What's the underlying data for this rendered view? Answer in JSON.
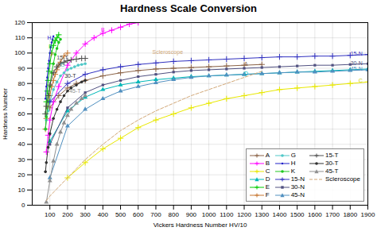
{
  "chart_data": {
    "type": "line",
    "title": "Hardness Scale Conversion",
    "x_label": "Vickers Hardness Number HV/10",
    "y_label": "Hardness Number",
    "xlim": [
      0,
      1900
    ],
    "ylim": [
      0,
      120
    ],
    "xticks": [
      100,
      200,
      300,
      400,
      500,
      600,
      700,
      800,
      900,
      1000,
      1100,
      1200,
      1300,
      1400,
      1500,
      1600,
      1700,
      1800,
      1900
    ],
    "yticks": [
      0,
      10,
      20,
      30,
      40,
      50,
      60,
      70,
      80,
      90,
      100,
      110,
      120
    ],
    "grid": true,
    "legend": "lower right",
    "series": [
      {
        "name": "A",
        "color": "#8B6347",
        "marker": "plus",
        "line_style": "solid",
        "x": [
          100,
          150,
          200,
          250,
          300,
          400,
          500,
          600,
          700,
          800,
          900,
          1000,
          1100,
          1200,
          1300
        ],
        "values": [
          64,
          72,
          77,
          80,
          82,
          85,
          87,
          88.5,
          89.5,
          90,
          90.5,
          91,
          91.5,
          92,
          92.5
        ]
      },
      {
        "name": "B",
        "color": "#ff00ff",
        "marker": "plus",
        "line_style": "solid",
        "x": [
          80,
          90,
          100,
          120,
          150,
          200,
          250,
          300,
          350,
          400,
          450,
          500,
          550,
          600
        ],
        "values": [
          35,
          46,
          56,
          68,
          78,
          92,
          100,
          106,
          110,
          113,
          115,
          117,
          119,
          120
        ]
      },
      {
        "name": "C",
        "color": "#e8e800",
        "marker": "plus",
        "line_style": "solid",
        "x": [
          200,
          300,
          400,
          500,
          600,
          700,
          800,
          900,
          1000,
          1100,
          1200,
          1300,
          1400,
          1500,
          1600,
          1700,
          1800,
          1900
        ],
        "values": [
          18,
          28,
          37,
          44,
          51,
          56,
          60,
          64,
          67,
          70,
          72,
          74,
          76,
          77,
          78,
          79,
          80,
          81
        ]
      },
      {
        "name": "D",
        "color": "#00b8b8",
        "marker": "triangle",
        "line_style": "solid",
        "x": [
          100,
          200,
          300,
          400,
          500,
          600,
          700,
          800,
          900,
          1000,
          1100,
          1200,
          1300,
          1400,
          1500,
          1600,
          1700,
          1800,
          1900
        ],
        "values": [
          42,
          62,
          71,
          76,
          79,
          81,
          82.5,
          83.5,
          84.5,
          85,
          85.5,
          86,
          86.5,
          87,
          87.5,
          88,
          88.5,
          89,
          89.5
        ]
      },
      {
        "name": "E",
        "color": "#00cc00",
        "marker": "plus",
        "line_style": "solid",
        "x": [
          75,
          80,
          85,
          90,
          95,
          100,
          110,
          120,
          130,
          140,
          150
        ],
        "values": [
          60,
          68,
          75,
          82,
          88,
          93,
          100,
          105,
          108,
          110,
          112
        ]
      },
      {
        "name": "F",
        "color": "#c87832",
        "marker": "plus",
        "line_style": "solid",
        "x": [
          75,
          80,
          90,
          100,
          110,
          120,
          130,
          140,
          150,
          160,
          180,
          200
        ],
        "values": [
          50,
          57,
          65,
          72,
          78,
          82,
          86,
          89,
          92,
          94,
          98,
          100
        ]
      },
      {
        "name": "G",
        "color": "#50c8c8",
        "marker": "circle",
        "line_style": "solid",
        "x": [
          75,
          80,
          90,
          100,
          120,
          140,
          160,
          180,
          200,
          220,
          240,
          260,
          280,
          300
        ],
        "values": [
          50,
          56,
          62,
          68,
          76,
          81,
          85,
          87,
          89,
          90,
          91,
          92,
          92.5,
          93
        ]
      },
      {
        "name": "H",
        "color": "#2020c8",
        "marker": "point",
        "line_style": "solid",
        "x": [
          75,
          80,
          85,
          90,
          95,
          100,
          105,
          110,
          115,
          120
        ],
        "values": [
          70,
          78,
          84,
          90,
          95,
          100,
          104,
          107,
          109,
          111
        ]
      },
      {
        "name": "K",
        "color": "#20c820",
        "marker": "circle",
        "line_style": "solid",
        "x": [
          75,
          80,
          90,
          100,
          110,
          120,
          130,
          140,
          150,
          160
        ],
        "values": [
          50,
          58,
          68,
          78,
          87,
          93,
          99,
          103,
          107,
          109
        ]
      },
      {
        "name": "15-N",
        "color": "#3030c0",
        "marker": "plus",
        "line_style": "solid",
        "x": [
          100,
          200,
          300,
          400,
          500,
          600,
          700,
          800,
          900,
          1000,
          1100,
          1200,
          1300,
          1400,
          1500,
          1600,
          1700,
          1800,
          1900
        ],
        "values": [
          68,
          80,
          86,
          89,
          91,
          92.5,
          93.5,
          94.5,
          95,
          95.5,
          96,
          96.5,
          97,
          97.5,
          97.5,
          98,
          98,
          98.5,
          99
        ]
      },
      {
        "name": "30-N",
        "color": "#505080",
        "marker": "square",
        "line_style": "solid",
        "x": [
          100,
          200,
          300,
          400,
          500,
          600,
          700,
          800,
          900,
          1000,
          1100,
          1200,
          1300,
          1400,
          1500,
          1600,
          1700,
          1800,
          1900
        ],
        "values": [
          40,
          64,
          74,
          79,
          82,
          84.5,
          86,
          87.5,
          88.5,
          89,
          89.5,
          90,
          90.5,
          91,
          91.5,
          92,
          92,
          92.5,
          93
        ]
      },
      {
        "name": "45-N",
        "color": "#5090c0",
        "marker": "triangle",
        "line_style": "solid",
        "x": [
          100,
          200,
          300,
          400,
          500,
          600,
          700,
          800,
          900,
          1000,
          1100,
          1200,
          1300,
          1400,
          1500,
          1600,
          1700,
          1800,
          1900
        ],
        "values": [
          18,
          52,
          63,
          70,
          75,
          78,
          80.5,
          82.5,
          84,
          85,
          85.5,
          86,
          86.5,
          87,
          87.5,
          87.5,
          88,
          88.5,
          89
        ]
      },
      {
        "name": "15-T",
        "color": "#505050",
        "marker": "plus",
        "line_style": "solid",
        "x": [
          75,
          80,
          90,
          100,
          120,
          140,
          160,
          180,
          200,
          220,
          250,
          280,
          300
        ],
        "values": [
          60,
          65,
          72,
          79,
          87,
          91,
          93,
          94,
          95,
          95.5,
          96,
          96.5,
          96.5
        ]
      },
      {
        "name": "30-T",
        "color": "#303030",
        "marker": "circle",
        "line_style": "solid",
        "x": [
          75,
          80,
          90,
          100,
          120,
          140,
          160,
          180,
          200,
          220,
          250,
          280,
          300
        ],
        "values": [
          22,
          28,
          38,
          47,
          57,
          63,
          68,
          72,
          75,
          77,
          79,
          81,
          82
        ]
      },
      {
        "name": "45-T",
        "color": "#909090",
        "marker": "triangle",
        "line_style": "solid",
        "x": [
          80,
          100,
          120,
          140,
          160,
          180,
          200,
          220,
          250,
          280,
          300
        ],
        "values": [
          2,
          16,
          29,
          40,
          48,
          54,
          59,
          63,
          67,
          70,
          72
        ]
      },
      {
        "name": "Scleroscope",
        "color": "#d2a878",
        "marker": "none",
        "line_style": "dashed",
        "x": [
          80,
          100,
          150,
          200,
          250,
          300,
          400,
          500,
          600,
          700,
          800,
          900,
          1000,
          1100,
          1200,
          1300
        ],
        "values": [
          3,
          6,
          12,
          18,
          24,
          30,
          40,
          49,
          56,
          62,
          67,
          72,
          76,
          80,
          84,
          88
        ]
      }
    ],
    "annotations": [
      {
        "text": "15-N",
        "x": 1870,
        "y": 99.5,
        "color": "#3030c0",
        "align": "right"
      },
      {
        "text": "30-N",
        "x": 1870,
        "y": 93.5,
        "color": "#505080",
        "align": "right"
      },
      {
        "text": "45-N",
        "x": 1870,
        "y": 89.5,
        "color": "#5090c0",
        "align": "right"
      },
      {
        "text": "C",
        "x": 1870,
        "y": 82,
        "color": "#c8c800",
        "align": "right"
      },
      {
        "text": "Scleroscope",
        "x": 680,
        "y": 100.5,
        "color": "#d2a878",
        "align": "left"
      },
      {
        "text": "A",
        "x": 1200,
        "y": 92.5,
        "color": "#8B6347",
        "align": "left"
      },
      {
        "text": "D",
        "x": 1200,
        "y": 86.5,
        "color": "#00b8b8",
        "align": "left"
      },
      {
        "text": "H",
        "x": 85,
        "y": 110,
        "color": "#2020c8",
        "align": "left"
      },
      {
        "text": "E",
        "x": 93,
        "y": 104,
        "color": "#00cc00",
        "align": "left"
      },
      {
        "text": "F",
        "x": 103,
        "y": 99,
        "color": "#c87832",
        "align": "left"
      },
      {
        "text": "K",
        "x": 115,
        "y": 108,
        "color": "#20c820",
        "align": "left"
      },
      {
        "text": "15-T",
        "x": 138,
        "y": 97,
        "color": "#505050",
        "align": "left"
      },
      {
        "text": "G",
        "x": 160,
        "y": 92,
        "color": "#50c8c8",
        "align": "left"
      },
      {
        "text": "30-T",
        "x": 183,
        "y": 85,
        "color": "#303030",
        "align": "left"
      },
      {
        "text": "45-T",
        "x": 210,
        "y": 75,
        "color": "#909090",
        "align": "left"
      },
      {
        "text": "B",
        "x": 390,
        "y": 115,
        "color": "#ff00ff",
        "align": "left"
      }
    ]
  }
}
